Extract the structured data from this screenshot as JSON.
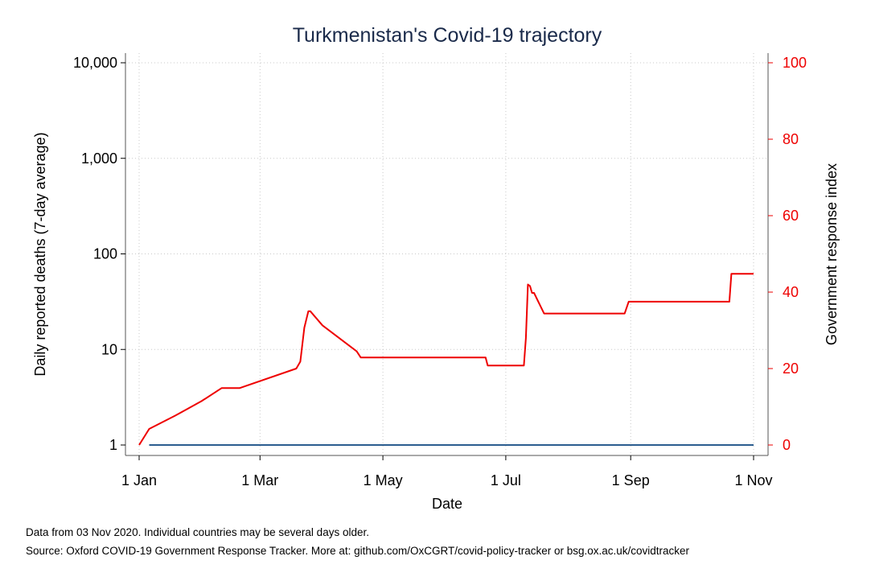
{
  "chart_data": {
    "type": "line",
    "title": "Turkmenistan's Covid-19 trajectory",
    "xlabel": "Date",
    "ylabel_left": "Daily reported deaths (7-day average)",
    "ylabel_right": "Government response index",
    "x_ticks": [
      "1 Jan",
      "1 Mar",
      "1 May",
      "1 Jul",
      "1 Sep",
      "1 Nov"
    ],
    "x_tick_dates": [
      "2020-01-01",
      "2020-03-01",
      "2020-05-01",
      "2020-07-01",
      "2020-09-01",
      "2020-11-01"
    ],
    "xlim": [
      "2020-01-01",
      "2020-11-01"
    ],
    "y_left_scale": "log",
    "y_left_ticks": [
      "1",
      "10",
      "100",
      "1,000",
      "10,000"
    ],
    "y_left_tick_values": [
      1,
      10,
      100,
      1000,
      10000
    ],
    "ylim_left": [
      1,
      10000
    ],
    "y_right_ticks": [
      "0",
      "20",
      "40",
      "60",
      "80",
      "100"
    ],
    "y_right_tick_values": [
      0,
      20,
      40,
      60,
      80,
      100
    ],
    "ylim_right": [
      0,
      100
    ],
    "grid": true,
    "series": [
      {
        "axis": "left",
        "color": "#2b5d8f",
        "x": [
          "2020-01-06",
          "2020-11-01"
        ],
        "y": [
          1,
          1
        ]
      },
      {
        "axis": "right",
        "color": "#ee0000",
        "step": true,
        "x": [
          "2020-01-01",
          "2020-01-06",
          "2020-01-19",
          "2020-02-01",
          "2020-02-11",
          "2020-02-20",
          "2020-03-19",
          "2020-03-21",
          "2020-03-23",
          "2020-03-25",
          "2020-03-26",
          "2020-04-01",
          "2020-04-18",
          "2020-04-20",
          "2020-04-22",
          "2020-06-21",
          "2020-06-22",
          "2020-07-10",
          "2020-07-11",
          "2020-07-12",
          "2020-07-13",
          "2020-07-14",
          "2020-07-15",
          "2020-07-20",
          "2020-08-29",
          "2020-08-31",
          "2020-10-20",
          "2020-10-21",
          "2020-11-01"
        ],
        "y": [
          0,
          4.2,
          7.7,
          11.5,
          14.9,
          14.9,
          20,
          21.8,
          30.7,
          35,
          35,
          31.3,
          24.5,
          22.9,
          22.9,
          22.9,
          20.8,
          20.8,
          28,
          42,
          41.6,
          39.8,
          39.8,
          34.4,
          34.4,
          37.5,
          37.5,
          44.8,
          44.8
        ]
      }
    ]
  },
  "notes": {
    "line1": "Data from 03 Nov 2020. Individual countries may be several days older.",
    "line2": "Source: Oxford COVID-19 Government Response Tracker. More at: github.com/OxCGRT/covid-policy-tracker or bsg.ox.ac.uk/covidtracker"
  },
  "colors": {
    "deaths_line": "#2b5d8f",
    "response_line": "#ee0000",
    "right_axis_text": "#ee0000",
    "title_text": "#1a2a4a"
  }
}
